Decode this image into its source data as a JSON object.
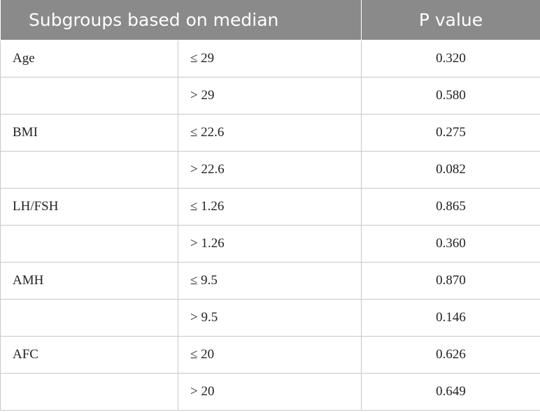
{
  "header": {
    "subgroups_label": "Subgroups based on median",
    "pvalue_label": "P value"
  },
  "rows": [
    {
      "variable": "Age",
      "condition": "≤ 29",
      "p_value": "0.320"
    },
    {
      "variable": "",
      "condition": "> 29",
      "p_value": "0.580"
    },
    {
      "variable": "BMI",
      "condition": "≤ 22.6",
      "p_value": "0.275"
    },
    {
      "variable": "",
      "condition": "> 22.6",
      "p_value": "0.082"
    },
    {
      "variable": "LH/FSH",
      "condition": "≤ 1.26",
      "p_value": "0.865"
    },
    {
      "variable": "",
      "condition": "> 1.26",
      "p_value": "0.360"
    },
    {
      "variable": "AMH",
      "condition": "≤ 9.5",
      "p_value": "0.870"
    },
    {
      "variable": "",
      "condition": "> 9.5",
      "p_value": "0.146"
    },
    {
      "variable": "AFC",
      "condition": "≤ 20",
      "p_value": "0.626"
    },
    {
      "variable": "",
      "condition": "> 20",
      "p_value": "0.649"
    }
  ]
}
